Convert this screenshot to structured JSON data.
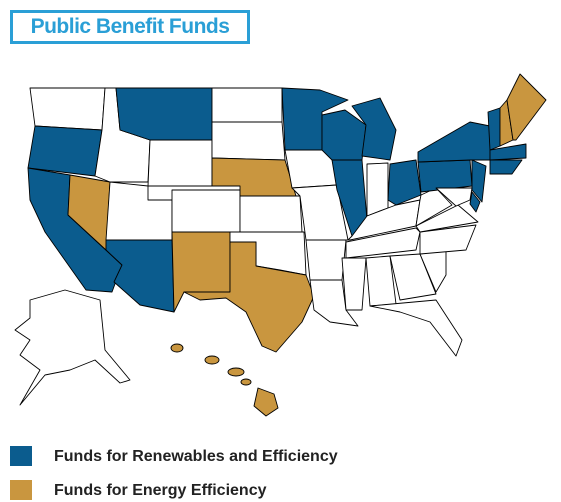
{
  "title": "Public Benefit Funds",
  "legend": [
    {
      "label": "Funds for Renewables and Efficiency",
      "color": "#0b5c8e"
    },
    {
      "label": "Funds for Energy Efficiency",
      "color": "#c9963f"
    }
  ]
}
